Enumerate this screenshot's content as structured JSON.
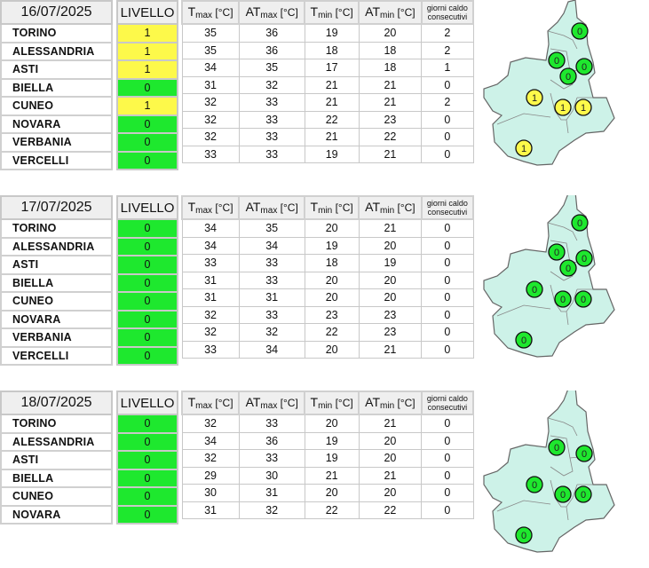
{
  "headers": {
    "livello": "LIVELLO",
    "columns": [
      {
        "main": "T",
        "sub": "max",
        "unit": "[°C]"
      },
      {
        "main": "AT",
        "sub": "max",
        "unit": "[°C]"
      },
      {
        "main": "T",
        "sub": "min",
        "unit": "[°C]"
      },
      {
        "main": "AT",
        "sub": "min",
        "unit": "[°C]"
      }
    ],
    "giorni_line1": "giorni caldo",
    "giorni_line2": "consecutivi"
  },
  "colors": {
    "level_0": "#1ee82e",
    "level_1": "#fdf94a",
    "map_fill": "#cdf2e8",
    "map_border": "#666666"
  },
  "days": [
    {
      "date": "16/07/2025",
      "rows": [
        {
          "name": "TORINO",
          "livello": "1",
          "tmax": "35",
          "atmax": "36",
          "tmin": "19",
          "atmin": "20",
          "giorni": "2"
        },
        {
          "name": "ALESSANDRIA",
          "livello": "1",
          "tmax": "35",
          "atmax": "36",
          "tmin": "18",
          "atmin": "18",
          "giorni": "2"
        },
        {
          "name": "ASTI",
          "livello": "1",
          "tmax": "34",
          "atmax": "35",
          "tmin": "17",
          "atmin": "18",
          "giorni": "1"
        },
        {
          "name": "BIELLA",
          "livello": "0",
          "tmax": "31",
          "atmax": "32",
          "tmin": "21",
          "atmin": "21",
          "giorni": "0"
        },
        {
          "name": "CUNEO",
          "livello": "1",
          "tmax": "32",
          "atmax": "33",
          "tmin": "21",
          "atmin": "21",
          "giorni": "2"
        },
        {
          "name": "NOVARA",
          "livello": "0",
          "tmax": "32",
          "atmax": "33",
          "tmin": "22",
          "atmin": "23",
          "giorni": "0"
        },
        {
          "name": "VERBANIA",
          "livello": "0",
          "tmax": "32",
          "atmax": "33",
          "tmin": "21",
          "atmin": "22",
          "giorni": "0"
        },
        {
          "name": "VERCELLI",
          "livello": "0",
          "tmax": "33",
          "atmax": "33",
          "tmin": "19",
          "atmin": "21",
          "giorni": "0"
        }
      ]
    },
    {
      "date": "17/07/2025",
      "rows": [
        {
          "name": "TORINO",
          "livello": "0",
          "tmax": "34",
          "atmax": "35",
          "tmin": "20",
          "atmin": "21",
          "giorni": "0"
        },
        {
          "name": "ALESSANDRIA",
          "livello": "0",
          "tmax": "34",
          "atmax": "34",
          "tmin": "19",
          "atmin": "20",
          "giorni": "0"
        },
        {
          "name": "ASTI",
          "livello": "0",
          "tmax": "33",
          "atmax": "33",
          "tmin": "18",
          "atmin": "19",
          "giorni": "0"
        },
        {
          "name": "BIELLA",
          "livello": "0",
          "tmax": "31",
          "atmax": "33",
          "tmin": "20",
          "atmin": "20",
          "giorni": "0"
        },
        {
          "name": "CUNEO",
          "livello": "0",
          "tmax": "31",
          "atmax": "31",
          "tmin": "20",
          "atmin": "20",
          "giorni": "0"
        },
        {
          "name": "NOVARA",
          "livello": "0",
          "tmax": "32",
          "atmax": "33",
          "tmin": "23",
          "atmin": "23",
          "giorni": "0"
        },
        {
          "name": "VERBANIA",
          "livello": "0",
          "tmax": "32",
          "atmax": "32",
          "tmin": "22",
          "atmin": "23",
          "giorni": "0"
        },
        {
          "name": "VERCELLI",
          "livello": "0",
          "tmax": "33",
          "atmax": "34",
          "tmin": "20",
          "atmin": "21",
          "giorni": "0"
        }
      ]
    },
    {
      "date": "18/07/2025",
      "rows": [
        {
          "name": "TORINO",
          "livello": "0",
          "tmax": "32",
          "atmax": "33",
          "tmin": "20",
          "atmin": "21",
          "giorni": "0"
        },
        {
          "name": "ALESSANDRIA",
          "livello": "0",
          "tmax": "34",
          "atmax": "36",
          "tmin": "19",
          "atmin": "20",
          "giorni": "0"
        },
        {
          "name": "ASTI",
          "livello": "0",
          "tmax": "32",
          "atmax": "33",
          "tmin": "19",
          "atmin": "20",
          "giorni": "0"
        },
        {
          "name": "BIELLA",
          "livello": "0",
          "tmax": "29",
          "atmax": "30",
          "tmin": "21",
          "atmin": "21",
          "giorni": "0"
        },
        {
          "name": "CUNEO",
          "livello": "0",
          "tmax": "30",
          "atmax": "31",
          "tmin": "20",
          "atmin": "20",
          "giorni": "0"
        },
        {
          "name": "NOVARA",
          "livello": "0",
          "tmax": "31",
          "atmax": "32",
          "tmin": "22",
          "atmin": "22",
          "giorni": "0"
        }
      ]
    }
  ]
}
